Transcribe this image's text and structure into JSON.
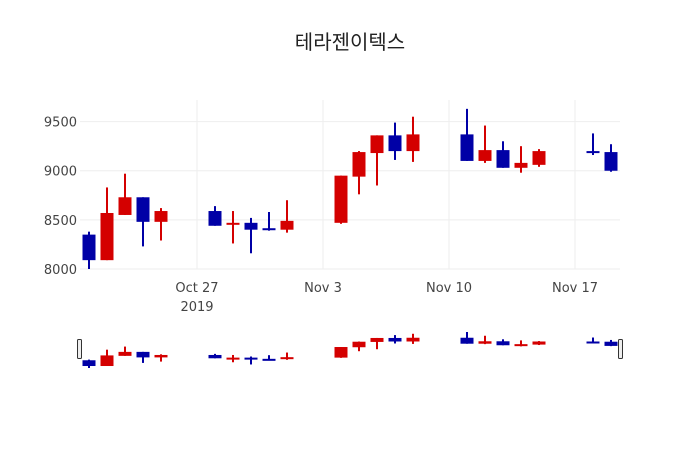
{
  "chart_data": {
    "type": "candlestick",
    "title": "테라젠이텍스",
    "xlabel": "",
    "ylabel": "",
    "ylim": [
      8000,
      9720
    ],
    "xlim": [
      "2019-10-20T12:00",
      "2019-11-19T12:00"
    ],
    "grid": true,
    "y_ticks": [
      8000,
      8500,
      9000,
      9500
    ],
    "y_tick_labels": [
      "8000",
      "8500",
      "9000",
      "9500"
    ],
    "x_ticks": [
      "2019-10-27",
      "2019-11-03",
      "2019-11-10",
      "2019-11-17"
    ],
    "x_tick_labels": [
      "Oct 27",
      "Nov 3",
      "Nov 10",
      "Nov 17"
    ],
    "x_tick_sublabel": "2019",
    "increasing_color": "#d40000",
    "decreasing_color": "#0000a6",
    "rangeslider": true,
    "candles": [
      {
        "date": "2019-10-21",
        "open": 8350,
        "high": 8380,
        "low": 8000,
        "close": 8090
      },
      {
        "date": "2019-10-22",
        "open": 8090,
        "high": 8830,
        "low": 8090,
        "close": 8570
      },
      {
        "date": "2019-10-23",
        "open": 8550,
        "high": 8970,
        "low": 8550,
        "close": 8730
      },
      {
        "date": "2019-10-24",
        "open": 8730,
        "high": 8730,
        "low": 8230,
        "close": 8480
      },
      {
        "date": "2019-10-25",
        "open": 8480,
        "high": 8620,
        "low": 8290,
        "close": 8590
      },
      {
        "date": "2019-10-28",
        "open": 8590,
        "high": 8640,
        "low": 8440,
        "close": 8440
      },
      {
        "date": "2019-10-29",
        "open": 8450,
        "high": 8590,
        "low": 8260,
        "close": 8470
      },
      {
        "date": "2019-10-30",
        "open": 8470,
        "high": 8520,
        "low": 8160,
        "close": 8400
      },
      {
        "date": "2019-10-31",
        "open": 8415,
        "high": 8580,
        "low": 8390,
        "close": 8400
      },
      {
        "date": "2019-11-01",
        "open": 8400,
        "high": 8700,
        "low": 8370,
        "close": 8490
      },
      {
        "date": "2019-11-04",
        "open": 8470,
        "high": 8950,
        "low": 8460,
        "close": 8950
      },
      {
        "date": "2019-11-05",
        "open": 8940,
        "high": 9200,
        "low": 8760,
        "close": 9190
      },
      {
        "date": "2019-11-06",
        "open": 9180,
        "high": 9360,
        "low": 8850,
        "close": 9360
      },
      {
        "date": "2019-11-07",
        "open": 9360,
        "high": 9490,
        "low": 9110,
        "close": 9200
      },
      {
        "date": "2019-11-08",
        "open": 9200,
        "high": 9550,
        "low": 9090,
        "close": 9370
      },
      {
        "date": "2019-11-11",
        "open": 9370,
        "high": 9630,
        "low": 9100,
        "close": 9100
      },
      {
        "date": "2019-11-12",
        "open": 9100,
        "high": 9460,
        "low": 9080,
        "close": 9210
      },
      {
        "date": "2019-11-13",
        "open": 9210,
        "high": 9300,
        "low": 9030,
        "close": 9030
      },
      {
        "date": "2019-11-14",
        "open": 9030,
        "high": 9250,
        "low": 8980,
        "close": 9080
      },
      {
        "date": "2019-11-15",
        "open": 9060,
        "high": 9220,
        "low": 9040,
        "close": 9200
      },
      {
        "date": "2019-11-18",
        "open": 9200,
        "high": 9380,
        "low": 9160,
        "close": 9180
      },
      {
        "date": "2019-11-19",
        "open": 9190,
        "high": 9270,
        "low": 8990,
        "close": 9000
      }
    ]
  }
}
